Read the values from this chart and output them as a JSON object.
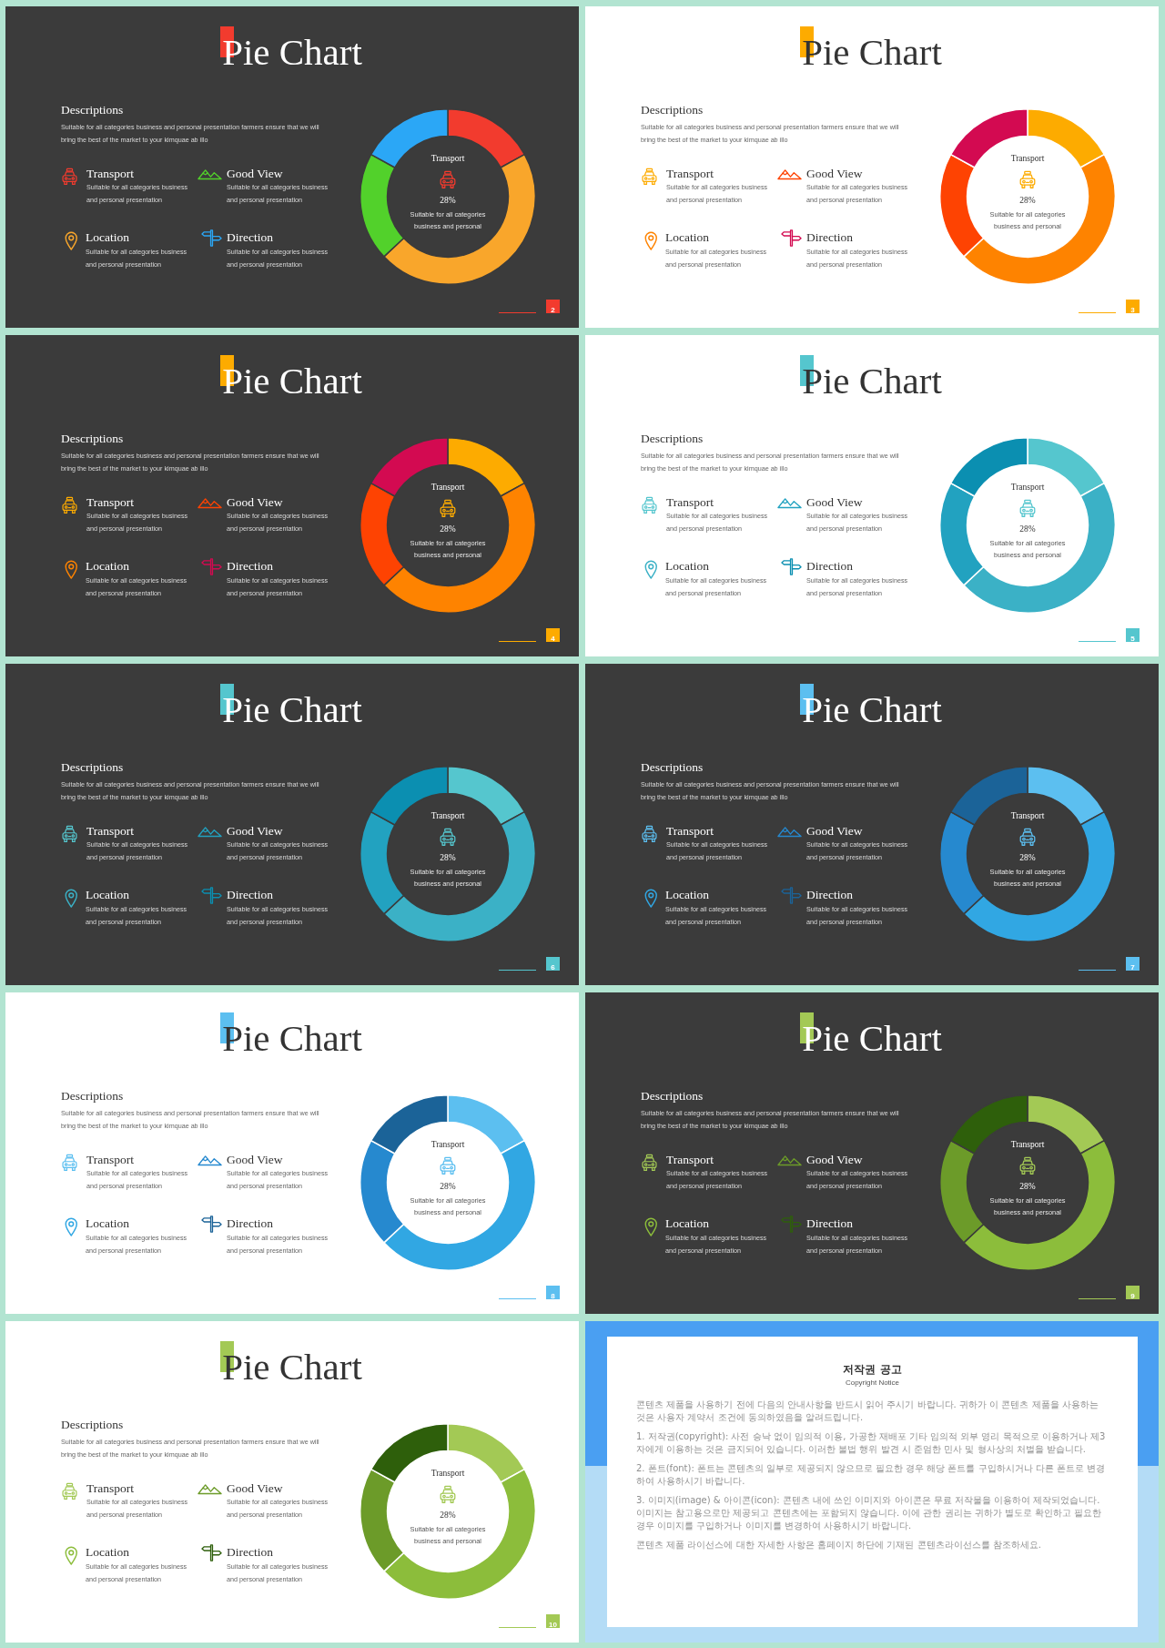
{
  "chart_data": [
    {
      "type": "donut",
      "title": "Pie Chart",
      "categories": [
        null,
        null,
        null,
        null
      ],
      "values": [
        17,
        46,
        20,
        17
      ],
      "colors": [
        "#f23b2e",
        "#f9a62b",
        "#52d12b",
        "#2ba7f6"
      ],
      "annotations": [
        "Descriptions",
        "Suitable for all categories business and personal presentation farmers ensure that we will bring the best of the market to your kimquae ab illo",
        "Transport",
        "Suitable for all categories business and personal presentation",
        "Good View",
        "Suitable for all categories business and personal presentation",
        "Location",
        "Suitable for all categories business and personal presentation",
        "Direction",
        "Suitable for all categories business and personal presentation",
        "Transport",
        "28%",
        "Suitable for all categories business and personal",
        "2"
      ]
    },
    {
      "type": "donut",
      "title": "Pie Chart",
      "categories": [
        null,
        null,
        null,
        null
      ],
      "values": [
        17,
        46,
        20,
        17
      ],
      "colors": [
        "#fdab00",
        "#fe8300",
        "#fe4302",
        "#d30a51"
      ],
      "annotations": [
        "Descriptions",
        "Suitable for all categories business and personal presentation farmers ensure that we will bring the best of the market to your kimquae ab illo",
        "Transport",
        "Suitable for all categories business and personal presentation",
        "Good View",
        "Suitable for all categories business and personal presentation",
        "Location",
        "Suitable for all categories business and personal presentation",
        "Direction",
        "Suitable for all categories business and personal presentation",
        "Transport",
        "28%",
        "Suitable for all categories business and personal",
        "3"
      ]
    },
    {
      "type": "donut",
      "title": "Pie Chart",
      "categories": [
        null,
        null,
        null,
        null
      ],
      "values": [
        17,
        46,
        20,
        17
      ],
      "colors": [
        "#fdab00",
        "#fe8300",
        "#fe4302",
        "#d30a51"
      ],
      "annotations": [
        "Descriptions",
        "Suitable for all categories business and personal presentation farmers ensure that we will bring the best of the market to your kimquae ab illo",
        "Transport",
        "Suitable for all categories business and personal presentation",
        "Good View",
        "Suitable for all categories business and personal presentation",
        "Location",
        "Suitable for all categories business and personal presentation",
        "Direction",
        "Suitable for all categories business and personal presentation",
        "Transport",
        "28%",
        "Suitable for all categories business and personal",
        "4"
      ]
    },
    {
      "type": "donut",
      "title": "Pie Chart",
      "categories": [
        null,
        null,
        null,
        null
      ],
      "values": [
        17,
        46,
        20,
        17
      ],
      "colors": [
        "#55c6ce",
        "#3bb1c6",
        "#22a2c0",
        "#0b8fb1"
      ],
      "annotations": [
        "Descriptions",
        "Suitable for all categories business and personal presentation farmers ensure that we will bring the best of the market to your kimquae ab illo",
        "Transport",
        "Suitable for all categories business and personal presentation",
        "Good View",
        "Suitable for all categories business and personal presentation",
        "Location",
        "Suitable for all categories business and personal presentation",
        "Direction",
        "Suitable for all categories business and personal presentation",
        "Transport",
        "28%",
        "Suitable for all categories business and personal",
        "5"
      ]
    },
    {
      "type": "donut",
      "title": "Pie Chart",
      "categories": [
        null,
        null,
        null,
        null
      ],
      "values": [
        17,
        46,
        20,
        17
      ],
      "colors": [
        "#55c6ce",
        "#3bb1c6",
        "#22a2c0",
        "#0b8fb1"
      ],
      "annotations": [
        "Descriptions",
        "Suitable for all categories business and personal presentation farmers ensure that we will bring the best of the market to your kimquae ab illo",
        "Transport",
        "Suitable for all categories business and personal presentation",
        "Good View",
        "Suitable for all categories business and personal presentation",
        "Location",
        "Suitable for all categories business and personal presentation",
        "Direction",
        "Suitable for all categories business and personal presentation",
        "Transport",
        "28%",
        "Suitable for all categories business and personal",
        "6"
      ]
    },
    {
      "type": "donut",
      "title": "Pie Chart",
      "categories": [
        null,
        null,
        null,
        null
      ],
      "values": [
        17,
        46,
        20,
        17
      ],
      "colors": [
        "#5cbff0",
        "#31a7e3",
        "#2689cf",
        "#1b6398"
      ],
      "annotations": [
        "Descriptions",
        "Suitable for all categories business and personal presentation farmers ensure that we will bring the best of the market to your kimquae ab illo",
        "Transport",
        "Suitable for all categories business and personal presentation",
        "Good View",
        "Suitable for all categories business and personal presentation",
        "Location",
        "Suitable for all categories business and personal presentation",
        "Direction",
        "Suitable for all categories business and personal presentation",
        "Transport",
        "28%",
        "Suitable for all categories business and personal",
        "7"
      ]
    },
    {
      "type": "donut",
      "title": "Pie Chart",
      "categories": [
        null,
        null,
        null,
        null
      ],
      "values": [
        17,
        46,
        20,
        17
      ],
      "colors": [
        "#5cbff0",
        "#31a7e3",
        "#2689cf",
        "#1b6398"
      ],
      "annotations": [
        "Descriptions",
        "Suitable for all categories business and personal presentation farmers ensure that we will bring the best of the market to your kimquae ab illo",
        "Transport",
        "Suitable for all categories business and personal presentation",
        "Good View",
        "Suitable for all categories business and personal presentation",
        "Location",
        "Suitable for all categories business and personal presentation",
        "Direction",
        "Suitable for all categories business and personal presentation",
        "Transport",
        "28%",
        "Suitable for all categories business and personal",
        "8"
      ]
    },
    {
      "type": "donut",
      "title": "Pie Chart",
      "categories": [
        null,
        null,
        null,
        null
      ],
      "values": [
        17,
        46,
        20,
        17
      ],
      "colors": [
        "#a3c955",
        "#8cbd3b",
        "#6c9b29",
        "#2e5f0b"
      ],
      "annotations": [
        "Descriptions",
        "Suitable for all categories business and personal presentation farmers ensure that we will bring the best of the market to your kimquae ab illo",
        "Transport",
        "Suitable for all categories business and personal presentation",
        "Good View",
        "Suitable for all categories business and personal presentation",
        "Location",
        "Suitable for all categories business and personal presentation",
        "Direction",
        "Suitable for all categories business and personal presentation",
        "Transport",
        "28%",
        "Suitable for all categories business and personal",
        "9"
      ]
    },
    {
      "type": "donut",
      "title": "Pie Chart",
      "categories": [
        null,
        null,
        null,
        null
      ],
      "values": [
        17,
        46,
        20,
        17
      ],
      "colors": [
        "#a3c955",
        "#8cbd3b",
        "#6c9b29",
        "#2e5f0b"
      ],
      "annotations": [
        "Descriptions",
        "Suitable for all categories business and personal presentation farmers ensure that we will bring the best of the market to your kimquae ab illo",
        "Transport",
        "Suitable for all categories business and personal presentation",
        "Good View",
        "Suitable for all categories business and personal presentation",
        "Location",
        "Suitable for all categories business and personal presentation",
        "Direction",
        "Suitable for all categories business and personal presentation",
        "Transport",
        "28%",
        "Suitable for all categories business and personal",
        "10"
      ]
    },
    {
      "type": "other",
      "title": "저작권 공고",
      "subtitle": "Copyright Notice",
      "annotations": [
        "콘텐츠 제품을 사용하기 전에 다음의 안내사항을 반드시 읽어 주시기 바랍니다. 귀하가 이 콘텐츠 제품을 사용하는 것은 사용자 계약서 조건에 동의하였음을 알려드립니다.",
        "1. 저작권(copyright): 사전 승낙 없이 임의적 이용, 가공한 재배포 기타 임의적 외부 영리 목적으로 이용하거나 제3자에게 이용하는 것은 금지되어 있습니다. 이러한 불법 행위 발견 시 준엄한 민사 및 형사상의 처벌을 받습니다.",
        "2. 폰트(font): 폰트는 콘텐츠의 일부로 제공되지 않으므로 필요한 경우 해당 폰트를 구입하시거나 다른 폰트로 변경하여 사용하시기 바랍니다.",
        "3. 이미지(image) & 아이콘(icon): 콘텐츠 내에 쓰인 이미지와 아이콘은 무료 저작물을 이용하여 제작되었습니다. 이미지는 참고용으로만 제공되고 콘텐츠에는 포함되지 않습니다. 이에 관한 권리는 귀하가 별도로 확인하고 필요한 경우 이미지를 구입하거나 이미지를 변경하여 사용하시기 바랍니다.",
        "콘텐츠 제품 라이선스에 대한 자세한 사항은 홈페이지 하단에 기재된 콘텐츠라이선스를 참조하세요."
      ]
    }
  ]
}
